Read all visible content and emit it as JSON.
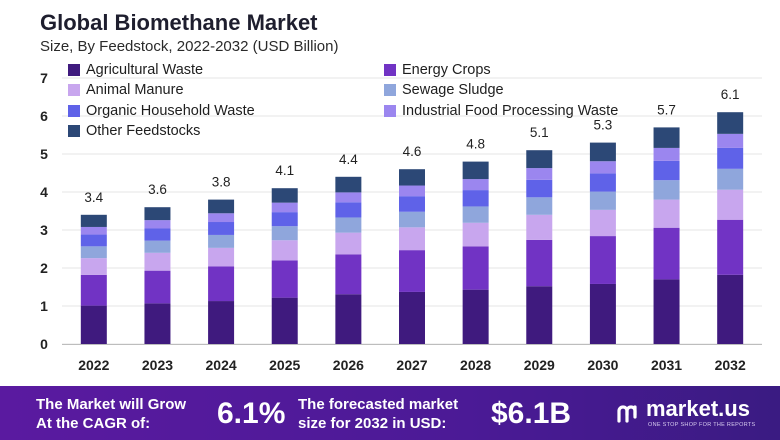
{
  "title": "Global Biomethane Market",
  "subtitle": "Size, By Feedstock, 2022-2032 (USD Billion)",
  "chart_data": {
    "type": "bar",
    "stacked": true,
    "categories": [
      "2022",
      "2023",
      "2024",
      "2025",
      "2026",
      "2027",
      "2028",
      "2029",
      "2030",
      "2031",
      "2032"
    ],
    "totals": [
      3.4,
      3.6,
      3.8,
      4.1,
      4.4,
      4.6,
      4.8,
      5.1,
      5.3,
      5.7,
      6.1
    ],
    "total_labels": [
      "3.4",
      "3.6",
      "3.8",
      "4.1",
      "4.4",
      "4.6",
      "4.8",
      "5.1",
      "5.3",
      "5.7",
      "6.1"
    ],
    "series": [
      {
        "name": "Agricultural Waste",
        "color": "#3f1a7e",
        "values": [
          1.01,
          1.07,
          1.13,
          1.22,
          1.31,
          1.37,
          1.43,
          1.52,
          1.58,
          1.7,
          1.82
        ]
      },
      {
        "name": "Energy Crops",
        "color": "#7133c4",
        "values": [
          0.81,
          0.86,
          0.91,
          0.98,
          1.05,
          1.1,
          1.14,
          1.22,
          1.26,
          1.36,
          1.45
        ]
      },
      {
        "name": "Animal Manure",
        "color": "#c8a6ee",
        "values": [
          0.44,
          0.47,
          0.49,
          0.53,
          0.57,
          0.6,
          0.62,
          0.66,
          0.69,
          0.74,
          0.79
        ]
      },
      {
        "name": "Sewage Sludge",
        "color": "#8fa6dc",
        "values": [
          0.31,
          0.32,
          0.34,
          0.37,
          0.4,
          0.41,
          0.43,
          0.46,
          0.48,
          0.51,
          0.55
        ]
      },
      {
        "name": "Organic Household Waste",
        "color": "#5f62e8",
        "values": [
          0.31,
          0.32,
          0.34,
          0.37,
          0.4,
          0.41,
          0.43,
          0.46,
          0.48,
          0.51,
          0.55
        ]
      },
      {
        "name": "Industrial Food Processing Waste",
        "color": "#9b86ef",
        "values": [
          0.2,
          0.22,
          0.23,
          0.25,
          0.26,
          0.28,
          0.29,
          0.31,
          0.32,
          0.34,
          0.37
        ]
      },
      {
        "name": "Other Feedstocks",
        "color": "#2c4876",
        "values": [
          0.32,
          0.34,
          0.36,
          0.38,
          0.41,
          0.43,
          0.46,
          0.47,
          0.49,
          0.54,
          0.57
        ]
      }
    ],
    "y_ticks": [
      0,
      1,
      2,
      3,
      4,
      5,
      6,
      7
    ],
    "ylim": [
      0,
      7
    ],
    "xlabel": "",
    "ylabel": "",
    "legend_position": "top"
  },
  "footer": {
    "cagr_text_line1": "The Market will Grow",
    "cagr_text_line2": "At the CAGR of:",
    "cagr_value": "6.1%",
    "forecast_text_line1": "The forecasted market",
    "forecast_text_line2": "size for 2032 in USD:",
    "forecast_value": "$6.1B",
    "brand_name": "market.us",
    "brand_tagline": "ONE STOP SHOP FOR THE REPORTS"
  }
}
